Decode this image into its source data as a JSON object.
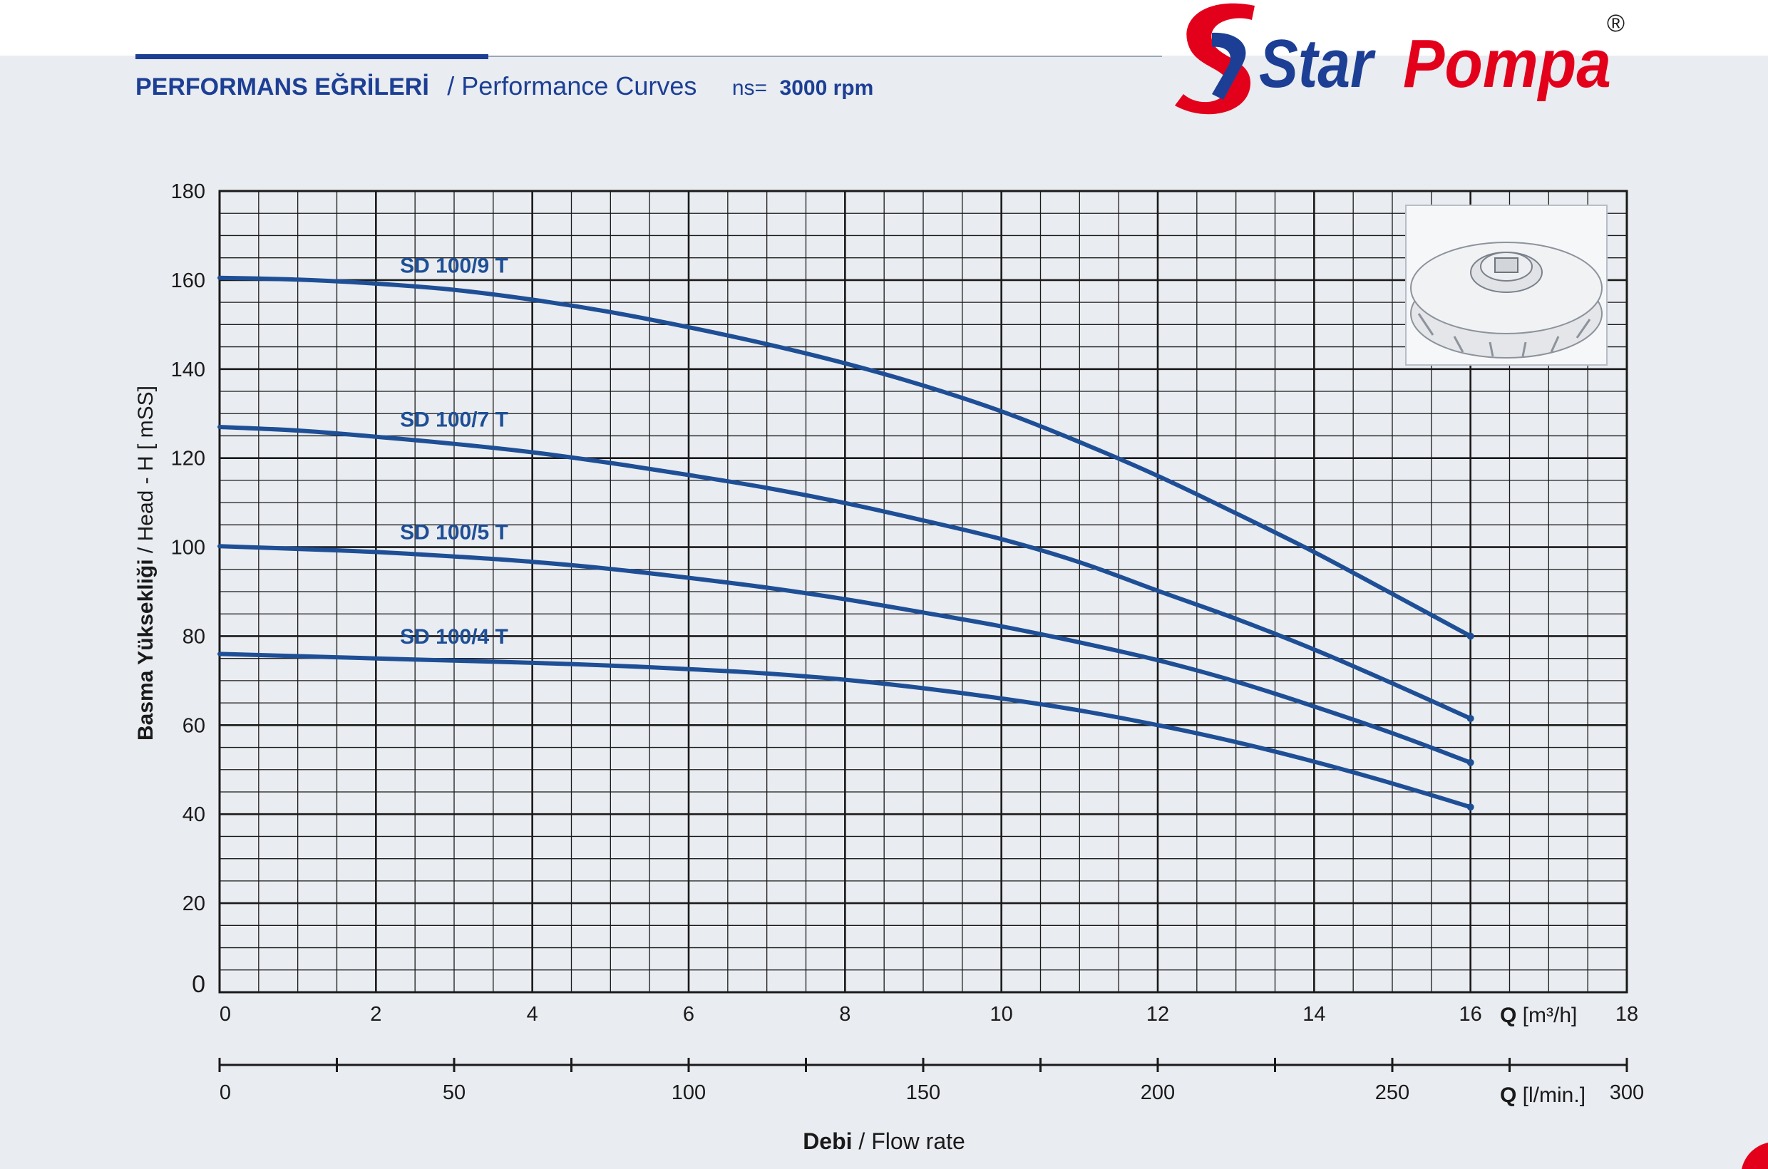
{
  "header": {
    "title_tr": "PERFORMANS EĞRİLERİ",
    "title_en": "/ Performance Curves",
    "speed_prefix": "ns=",
    "speed_value": "3000 rpm"
  },
  "brand": {
    "word1": "Star",
    "word2": "Pompa",
    "registered": "®",
    "blue": "#1c3f95",
    "red": "#e3001b"
  },
  "colors": {
    "curve": "#1e4f96",
    "grid": "#1a1a1a",
    "panel": "#e9ecf0",
    "heading": "#1c3f95"
  },
  "chart_data": {
    "type": "line",
    "ylabel": "Basma Yüksekliği / Head - H [ mSS]",
    "ylabel_bold": "Basma Yüksekliği",
    "ylabel_rest": " / Head - H [ mSS]",
    "xlabel_bold": "Debi",
    "xlabel_rest": " / Flow rate",
    "xlim": [
      0,
      18
    ],
    "ylim": [
      0,
      180
    ],
    "x_ticks": [
      "0",
      "2",
      "4",
      "6",
      "8",
      "10",
      "12",
      "14",
      "16",
      "18"
    ],
    "y_ticks": [
      "0",
      "20",
      "40",
      "60",
      "80",
      "100",
      "120",
      "140",
      "160",
      "180"
    ],
    "x_unit_bold": "Q",
    "x_unit_rest": " [m³/h]",
    "x2_unit_bold": "Q",
    "x2_unit_rest": " [l/min.]",
    "x2_ticks": [
      "0",
      "50",
      "100",
      "150",
      "200",
      "250",
      "300"
    ],
    "x2_lim": [
      0,
      300
    ],
    "grid": true,
    "series": [
      {
        "name": "SD 100/9 T",
        "x": [
          0,
          1,
          2,
          3,
          4,
          5,
          6,
          7,
          8,
          9,
          10,
          11,
          12,
          13,
          14,
          15,
          16
        ],
        "y": [
          160.5,
          160.1,
          159.2,
          157.8,
          155.6,
          152.8,
          149.4,
          145.6,
          141.3,
          136.3,
          130.5,
          123.6,
          116.0,
          107.6,
          98.9,
          89.5,
          80.0
        ]
      },
      {
        "name": "SD 100/7 T",
        "x": [
          0,
          1,
          2,
          3,
          4,
          5,
          6,
          7,
          8,
          9,
          10,
          11,
          12,
          13,
          14,
          15,
          16
        ],
        "y": [
          127.0,
          126.2,
          124.8,
          123.2,
          121.3,
          118.9,
          116.2,
          113.3,
          109.9,
          106.0,
          101.8,
          96.6,
          90.2,
          83.9,
          77.0,
          69.4,
          61.5
        ]
      },
      {
        "name": "SD 100/5 T",
        "x": [
          0,
          1,
          2,
          3,
          4,
          5,
          6,
          7,
          8,
          9,
          10,
          11,
          12,
          13,
          14,
          15,
          16
        ],
        "y": [
          100.2,
          99.6,
          98.9,
          97.9,
          96.7,
          95.1,
          93.1,
          90.9,
          88.3,
          85.3,
          82.2,
          78.6,
          74.6,
          69.8,
          64.2,
          58.2,
          51.6
        ]
      },
      {
        "name": "SD 100/4 T",
        "x": [
          0,
          1,
          2,
          3,
          4,
          5,
          6,
          7,
          8,
          9,
          10,
          11,
          12,
          13,
          14,
          15,
          16
        ],
        "y": [
          76.0,
          75.5,
          75.0,
          74.5,
          74.0,
          73.4,
          72.6,
          71.6,
          70.2,
          68.3,
          66.0,
          63.3,
          60.0,
          56.2,
          51.8,
          46.9,
          41.6
        ]
      }
    ]
  }
}
